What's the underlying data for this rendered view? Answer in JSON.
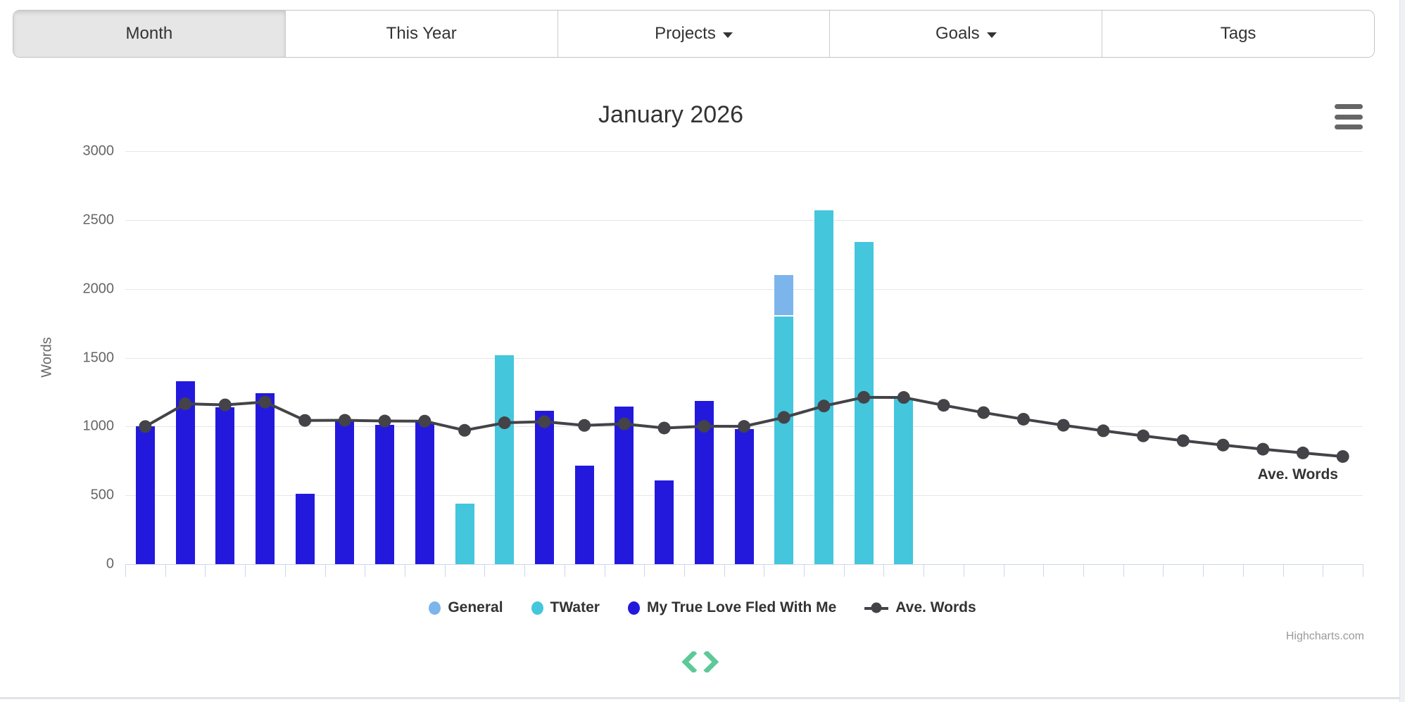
{
  "toolbar": {
    "buttons": [
      {
        "label": "Month",
        "active": true,
        "dropdown": false
      },
      {
        "label": "This Year",
        "active": false,
        "dropdown": false
      },
      {
        "label": "Projects",
        "active": false,
        "dropdown": true
      },
      {
        "label": "Goals",
        "active": false,
        "dropdown": true
      },
      {
        "label": "Tags",
        "active": false,
        "dropdown": false
      }
    ]
  },
  "chart": {
    "title": "January 2026",
    "credit": "Highcharts.com",
    "menu_icon": "hamburger-icon"
  },
  "chart_data": {
    "type": "bar",
    "subtype": "stacked-columns-with-average-line",
    "title": "January 2026",
    "xlabel": "",
    "ylabel": "Words",
    "ylim": [
      0,
      3000
    ],
    "ytick_step": 500,
    "grid": "horizontal",
    "legend_position": "bottom",
    "x": [
      1,
      2,
      3,
      4,
      5,
      6,
      7,
      8,
      9,
      10,
      11,
      12,
      13,
      14,
      15,
      16,
      17,
      18,
      19,
      20,
      21,
      22,
      23,
      24,
      25,
      26,
      27,
      28,
      29,
      30,
      31
    ],
    "series": [
      {
        "name": "General",
        "type": "column",
        "color": "#7cb5ec",
        "values": [
          0,
          0,
          0,
          0,
          0,
          0,
          0,
          0,
          0,
          0,
          0,
          0,
          0,
          0,
          0,
          0,
          300,
          0,
          0,
          0,
          0,
          0,
          0,
          0,
          0,
          0,
          0,
          0,
          0,
          0,
          0
        ]
      },
      {
        "name": "TWater",
        "type": "column",
        "color": "#44c6dd",
        "values": [
          0,
          0,
          0,
          0,
          0,
          0,
          0,
          0,
          440,
          1520,
          0,
          0,
          0,
          0,
          0,
          0,
          1800,
          2570,
          2340,
          1200,
          0,
          0,
          0,
          0,
          0,
          0,
          0,
          0,
          0,
          0,
          0
        ]
      },
      {
        "name": "My True Love Fled With Me",
        "type": "column",
        "color": "#2319dd",
        "values": [
          1000,
          1330,
          1140,
          1240,
          510,
          1050,
          1010,
          1030,
          0,
          0,
          1115,
          713,
          1144,
          610,
          1185,
          980,
          0,
          0,
          0,
          0,
          0,
          0,
          0,
          0,
          0,
          0,
          0,
          0,
          0,
          0,
          0
        ]
      },
      {
        "name": "Ave. Words",
        "type": "line",
        "color": "#434348",
        "values": [
          1000,
          1165,
          1157,
          1178,
          1044,
          1045,
          1040,
          1039,
          972,
          1027,
          1035,
          1008,
          1019,
          989,
          1002,
          1001,
          1066,
          1149,
          1212,
          1211,
          1154,
          1101,
          1053,
          1009,
          969,
          932,
          897,
          865,
          835,
          808,
          782
        ]
      }
    ],
    "annotations": [
      {
        "text": "Ave. Words",
        "attached_to": "last line point"
      }
    ]
  },
  "nav": {
    "prev_icon": "chevron-left-icon",
    "next_icon": "chevron-right-icon",
    "arrow_color": "#5ec998"
  },
  "colors": {
    "axis_line": "#ccd6eb",
    "gridline": "#e6e6e6",
    "axis_text": "#666666",
    "title_text": "#333333",
    "credit_text": "#9a9a9a",
    "active_button_bg": "#e6e6e6"
  }
}
